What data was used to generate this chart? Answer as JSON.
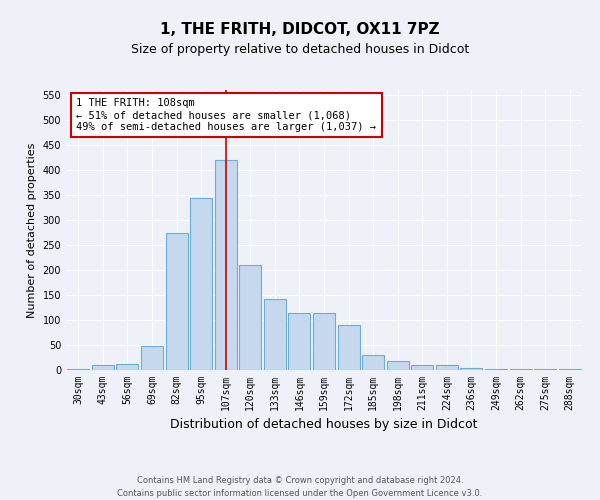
{
  "title": "1, THE FRITH, DIDCOT, OX11 7PZ",
  "subtitle": "Size of property relative to detached houses in Didcot",
  "xlabel": "Distribution of detached houses by size in Didcot",
  "ylabel": "Number of detached properties",
  "footer_line1": "Contains HM Land Registry data © Crown copyright and database right 2024.",
  "footer_line2": "Contains public sector information licensed under the Open Government Licence v3.0.",
  "categories": [
    "30sqm",
    "43sqm",
    "56sqm",
    "69sqm",
    "82sqm",
    "95sqm",
    "107sqm",
    "120sqm",
    "133sqm",
    "146sqm",
    "159sqm",
    "172sqm",
    "185sqm",
    "198sqm",
    "211sqm",
    "224sqm",
    "236sqm",
    "249sqm",
    "262sqm",
    "275sqm",
    "288sqm"
  ],
  "values": [
    3,
    10,
    13,
    49,
    275,
    345,
    420,
    210,
    143,
    115,
    115,
    90,
    30,
    18,
    10,
    10,
    4,
    3,
    3,
    3,
    3
  ],
  "bar_color": "#c5d8ed",
  "bar_edge_color": "#6aaed6",
  "bar_linewidth": 0.8,
  "vline_color": "#cc0000",
  "annotation_text": "1 THE FRITH: 108sqm\n← 51% of detached houses are smaller (1,068)\n49% of semi-detached houses are larger (1,037) →",
  "annotation_box_color": "#ffffff",
  "annotation_box_edge": "#cc0000",
  "ylim": [
    0,
    560
  ],
  "yticks": [
    0,
    50,
    100,
    150,
    200,
    250,
    300,
    350,
    400,
    450,
    500,
    550
  ],
  "bg_color": "#eef2f8",
  "grid_color": "#ffffff",
  "title_fontsize": 11,
  "subtitle_fontsize": 9,
  "xlabel_fontsize": 9,
  "ylabel_fontsize": 8,
  "tick_fontsize": 7,
  "annotation_fontsize": 7.5,
  "footer_fontsize": 6
}
